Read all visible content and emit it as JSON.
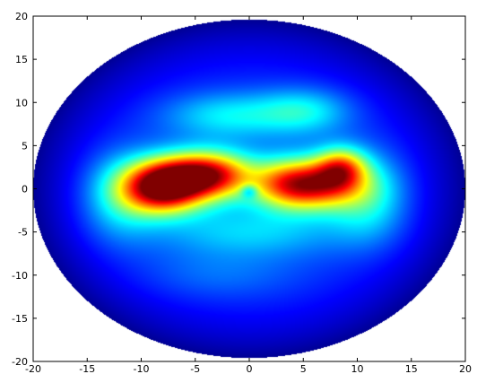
{
  "chart_data": {
    "type": "heatmap",
    "title": "",
    "xlabel": "",
    "ylabel": "",
    "xlim": [
      -20,
      20
    ],
    "ylim": [
      -20,
      20
    ],
    "xticks": [
      -20,
      -15,
      -10,
      -5,
      0,
      5,
      10,
      15,
      20
    ],
    "yticks": [
      -20,
      -15,
      -10,
      -5,
      0,
      5,
      10,
      15,
      20
    ],
    "grid": false,
    "colormap": "jet",
    "domain_shape": "ellipse",
    "domain_ellipse": {
      "center": [
        0,
        0
      ],
      "semi_axes": [
        20,
        19.6
      ]
    },
    "value_range": [
      0,
      1
    ],
    "background_color": "#ffffff",
    "hotspots": [
      {
        "x": -8,
        "y": 0,
        "sx": 2.6,
        "sy": 2.0,
        "amp": 0.78
      },
      {
        "x": -5,
        "y": 1.8,
        "sx": 3.2,
        "sy": 1.8,
        "amp": 0.5
      },
      {
        "x": -3,
        "y": 1.3,
        "sx": 2.5,
        "sy": 2.0,
        "amp": 0.3
      },
      {
        "x": 6,
        "y": 0.5,
        "sx": 3.0,
        "sy": 2.0,
        "amp": 0.65
      },
      {
        "x": 8.5,
        "y": 2.5,
        "sx": 1.6,
        "sy": 1.6,
        "amp": 0.4
      },
      {
        "x": 3,
        "y": 0.5,
        "sx": 2.2,
        "sy": 2.0,
        "amp": 0.25
      },
      {
        "x": -12,
        "y": -1,
        "sx": 2.5,
        "sy": 3.5,
        "amp": 0.2
      },
      {
        "x": 11,
        "y": -1,
        "sx": 2.5,
        "sy": 3.5,
        "amp": 0.22
      },
      {
        "x": -2,
        "y": 8.5,
        "sx": 4.0,
        "sy": 1.8,
        "amp": 0.18
      },
      {
        "x": 5,
        "y": 9,
        "sx": 3.0,
        "sy": 1.8,
        "amp": 0.2
      },
      {
        "x": 0,
        "y": -5,
        "sx": 6.0,
        "sy": 2.0,
        "amp": 0.14
      },
      {
        "x": -3,
        "y": -10,
        "sx": 5.0,
        "sy": 2.0,
        "amp": 0.06
      }
    ],
    "base_value": 0.2
  }
}
